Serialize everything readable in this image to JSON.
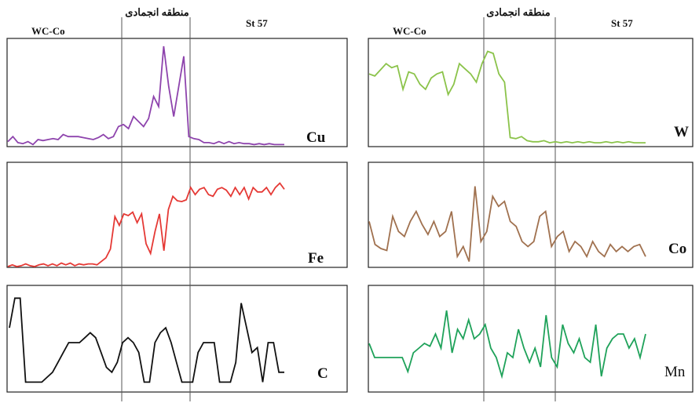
{
  "columns": [
    {
      "label_left": "WC-Co",
      "label_zone": "منطقه انجمادی",
      "label_right": "St 57"
    },
    {
      "label_left": "WC-Co",
      "label_zone": "منطقه انجمادی",
      "label_right": "St 57"
    }
  ],
  "chart_data": [
    {
      "type": "line",
      "element": "Cu",
      "color": "#8e44ad",
      "values": [
        0.05,
        0.1,
        0.04,
        0.03,
        0.05,
        0.02,
        0.07,
        0.06,
        0.07,
        0.08,
        0.07,
        0.12,
        0.1,
        0.1,
        0.1,
        0.09,
        0.08,
        0.07,
        0.09,
        0.12,
        0.08,
        0.1,
        0.2,
        0.22,
        0.18,
        0.3,
        0.25,
        0.2,
        0.28,
        0.5,
        0.4,
        1.0,
        0.6,
        0.3,
        0.6,
        0.9,
        0.1,
        0.08,
        0.07,
        0.04,
        0.04,
        0.03,
        0.05,
        0.03,
        0.05,
        0.03,
        0.04,
        0.03,
        0.03,
        0.02,
        0.03,
        0.02,
        0.03,
        0.02,
        0.02,
        0.02
      ]
    },
    {
      "type": "line",
      "element": "Fe",
      "color": "#e53935",
      "values": [
        0.0,
        0.02,
        0.0,
        0.01,
        0.03,
        0.01,
        0.0,
        0.02,
        0.03,
        0.01,
        0.03,
        0.01,
        0.04,
        0.02,
        0.04,
        0.01,
        0.03,
        0.02,
        0.03,
        0.03,
        0.02,
        0.06,
        0.1,
        0.2,
        0.57,
        0.47,
        0.6,
        0.58,
        0.62,
        0.5,
        0.6,
        0.26,
        0.15,
        0.4,
        0.6,
        0.18,
        0.65,
        0.8,
        0.75,
        0.74,
        0.76,
        0.9,
        0.82,
        0.88,
        0.9,
        0.82,
        0.8,
        0.88,
        0.9,
        0.87,
        0.8,
        0.9,
        0.82,
        0.9,
        0.77,
        0.9,
        0.85,
        0.85,
        0.9,
        0.82,
        0.9,
        0.95,
        0.88
      ]
    },
    {
      "type": "line",
      "element": "C",
      "color": "#111111",
      "values": [
        0.65,
        0.95,
        0.95,
        0.1,
        0.1,
        0.1,
        0.1,
        0.15,
        0.2,
        0.3,
        0.4,
        0.5,
        0.5,
        0.5,
        0.55,
        0.6,
        0.55,
        0.4,
        0.25,
        0.2,
        0.3,
        0.5,
        0.55,
        0.5,
        0.4,
        0.1,
        0.1,
        0.5,
        0.6,
        0.65,
        0.5,
        0.3,
        0.1,
        0.1,
        0.1,
        0.4,
        0.5,
        0.5,
        0.5,
        0.1,
        0.1,
        0.1,
        0.3,
        0.9,
        0.65,
        0.4,
        0.45,
        0.1,
        0.5,
        0.5,
        0.2,
        0.2
      ]
    },
    {
      "type": "line",
      "element": "W",
      "color": "#8bc34a",
      "values": [
        0.7,
        0.68,
        0.74,
        0.8,
        0.76,
        0.78,
        0.55,
        0.72,
        0.7,
        0.6,
        0.55,
        0.66,
        0.7,
        0.72,
        0.5,
        0.6,
        0.8,
        0.75,
        0.7,
        0.62,
        0.8,
        0.92,
        0.9,
        0.7,
        0.62,
        0.08,
        0.07,
        0.09,
        0.05,
        0.04,
        0.04,
        0.05,
        0.03,
        0.04,
        0.03,
        0.04,
        0.03,
        0.04,
        0.03,
        0.04,
        0.03,
        0.03,
        0.04,
        0.03,
        0.04,
        0.03,
        0.04,
        0.03,
        0.03,
        0.03
      ]
    },
    {
      "type": "line",
      "element": "Co",
      "color": "#a0714f",
      "values": [
        0.45,
        0.22,
        0.18,
        0.16,
        0.5,
        0.35,
        0.3,
        0.45,
        0.55,
        0.42,
        0.32,
        0.45,
        0.3,
        0.35,
        0.55,
        0.1,
        0.2,
        0.05,
        0.8,
        0.25,
        0.35,
        0.7,
        0.6,
        0.65,
        0.45,
        0.4,
        0.25,
        0.2,
        0.25,
        0.5,
        0.55,
        0.2,
        0.3,
        0.35,
        0.15,
        0.25,
        0.2,
        0.1,
        0.25,
        0.15,
        0.1,
        0.22,
        0.15,
        0.2,
        0.15,
        0.2,
        0.22,
        0.1
      ]
    },
    {
      "type": "line",
      "element": "Mn",
      "color": "#1fa25a",
      "values": [
        0.45,
        0.3,
        0.3,
        0.3,
        0.3,
        0.3,
        0.3,
        0.15,
        0.35,
        0.4,
        0.45,
        0.42,
        0.55,
        0.4,
        0.8,
        0.35,
        0.6,
        0.5,
        0.7,
        0.5,
        0.55,
        0.65,
        0.4,
        0.3,
        0.1,
        0.35,
        0.3,
        0.6,
        0.4,
        0.25,
        0.4,
        0.2,
        0.75,
        0.3,
        0.2,
        0.65,
        0.45,
        0.35,
        0.5,
        0.3,
        0.25,
        0.65,
        0.1,
        0.4,
        0.5,
        0.55,
        0.55,
        0.4,
        0.5,
        0.3,
        0.55
      ]
    }
  ]
}
